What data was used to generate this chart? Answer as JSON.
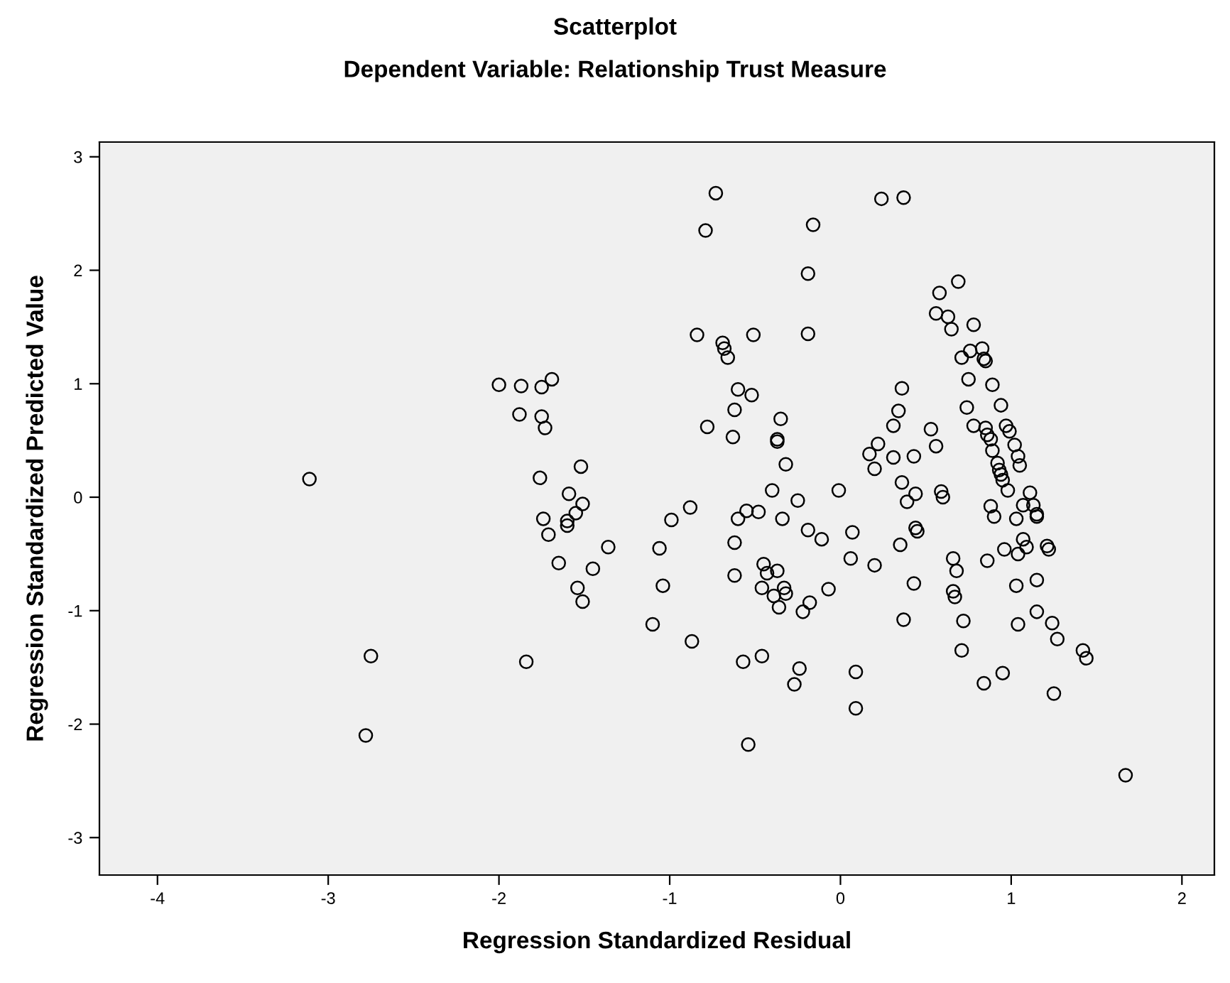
{
  "chart_data": {
    "type": "scatter",
    "title": "Scatterplot",
    "subtitle": "Dependent Variable: Relationship Trust Measure",
    "xlabel": "Regression Standardized Residual",
    "ylabel": "Regression Standardized Predicted Value",
    "x": [
      -3.11,
      -2.75,
      -2.78,
      -2.0,
      -1.87,
      -1.75,
      -1.69,
      -1.88,
      -1.75,
      -1.73,
      -1.76,
      -1.52,
      -1.59,
      -1.51,
      -1.74,
      -1.55,
      -1.6,
      -1.6,
      -1.71,
      -1.36,
      -1.65,
      -1.45,
      -1.54,
      -1.51,
      -1.84,
      -0.73,
      -0.79,
      -0.16,
      -0.19,
      0.24,
      0.37,
      -0.84,
      -0.69,
      -0.68,
      -0.66,
      -0.51,
      -0.19,
      -0.6,
      -0.52,
      -0.62,
      -0.78,
      -0.63,
      -0.35,
      -0.37,
      -0.37,
      -0.32,
      -0.4,
      -0.25,
      -0.01,
      -0.88,
      -0.99,
      -0.6,
      -0.55,
      -0.48,
      -0.34,
      -0.19,
      -0.11,
      0.07,
      0.06,
      0.2,
      -1.06,
      -0.62,
      -1.04,
      -1.1,
      -0.87,
      -0.62,
      -0.45,
      -0.43,
      -0.37,
      -0.46,
      -0.33,
      -0.32,
      -0.39,
      -0.36,
      -0.18,
      -0.22,
      -0.07,
      -0.57,
      -0.46,
      -0.24,
      -0.27,
      0.09,
      0.09,
      -0.54,
      0.36,
      0.34,
      0.31,
      0.22,
      0.17,
      0.2,
      0.31,
      0.43,
      0.36,
      0.39,
      0.44,
      0.44,
      0.45,
      0.35,
      0.43,
      0.37,
      0.53,
      0.56,
      0.58,
      0.56,
      0.69,
      0.63,
      0.65,
      0.78,
      0.71,
      0.76,
      0.83,
      0.84,
      0.85,
      0.75,
      0.89,
      0.74,
      0.94,
      0.78,
      0.85,
      0.86,
      0.88,
      0.97,
      0.99,
      1.02,
      1.04,
      1.05,
      0.89,
      0.92,
      0.93,
      0.94,
      0.95,
      0.98,
      1.11,
      1.07,
      1.13,
      1.15,
      1.15,
      1.03,
      0.88,
      0.9,
      0.59,
      0.6,
      1.07,
      1.09,
      1.04,
      0.96,
      0.86,
      1.21,
      1.22,
      0.66,
      0.68,
      0.66,
      0.67,
      1.03,
      1.15,
      0.72,
      1.04,
      1.15,
      1.24,
      1.27,
      0.71,
      1.42,
      1.44,
      0.95,
      0.84,
      1.25,
      1.67
    ],
    "values": [
      0.16,
      -1.4,
      -2.1,
      0.99,
      0.98,
      0.97,
      1.04,
      0.73,
      0.71,
      0.61,
      0.17,
      0.27,
      0.03,
      -0.06,
      -0.19,
      -0.14,
      -0.21,
      -0.25,
      -0.33,
      -0.44,
      -0.58,
      -0.63,
      -0.8,
      -0.92,
      -1.45,
      2.68,
      2.35,
      2.4,
      1.97,
      2.63,
      2.64,
      1.43,
      1.36,
      1.31,
      1.23,
      1.43,
      1.44,
      0.95,
      0.9,
      0.77,
      0.62,
      0.53,
      0.69,
      0.51,
      0.49,
      0.29,
      0.06,
      -0.03,
      0.06,
      -0.09,
      -0.2,
      -0.19,
      -0.12,
      -0.13,
      -0.19,
      -0.29,
      -0.37,
      -0.31,
      -0.54,
      -0.6,
      -0.45,
      -0.4,
      -0.78,
      -1.12,
      -1.27,
      -0.69,
      -0.59,
      -0.67,
      -0.65,
      -0.8,
      -0.8,
      -0.85,
      -0.87,
      -0.97,
      -0.93,
      -1.01,
      -0.81,
      -1.45,
      -1.4,
      -1.51,
      -1.65,
      -1.54,
      -1.86,
      -2.18,
      0.96,
      0.76,
      0.63,
      0.47,
      0.38,
      0.25,
      0.35,
      0.36,
      0.13,
      -0.04,
      0.03,
      -0.27,
      -0.3,
      -0.42,
      -0.76,
      -1.08,
      0.6,
      0.45,
      1.8,
      1.62,
      1.9,
      1.59,
      1.48,
      1.52,
      1.23,
      1.29,
      1.31,
      1.22,
      1.2,
      1.04,
      0.99,
      0.79,
      0.81,
      0.63,
      0.61,
      0.55,
      0.51,
      0.63,
      0.58,
      0.46,
      0.36,
      0.28,
      0.41,
      0.3,
      0.24,
      0.2,
      0.15,
      0.06,
      0.04,
      -0.07,
      -0.07,
      -0.15,
      -0.17,
      -0.19,
      -0.08,
      -0.17,
      0.05,
      0.0,
      -0.37,
      -0.44,
      -0.5,
      -0.46,
      -0.56,
      -0.43,
      -0.46,
      -0.54,
      -0.65,
      -0.83,
      -0.88,
      -0.78,
      -0.73,
      -1.09,
      -1.12,
      -1.01,
      -1.11,
      -1.25,
      -1.35,
      -1.35,
      -1.42,
      -1.55,
      -1.64,
      -1.73,
      -2.45
    ],
    "color": "#000000",
    "marker": "circle",
    "xlim": [
      -4.34,
      2.19
    ],
    "xticks": [
      -4,
      -3,
      -2,
      -1,
      0,
      1,
      2
    ],
    "ylim": [
      -3.33,
      3.13
    ],
    "yticks": [
      -3,
      -2,
      -1,
      0,
      1,
      2,
      3
    ],
    "grid": false
  }
}
